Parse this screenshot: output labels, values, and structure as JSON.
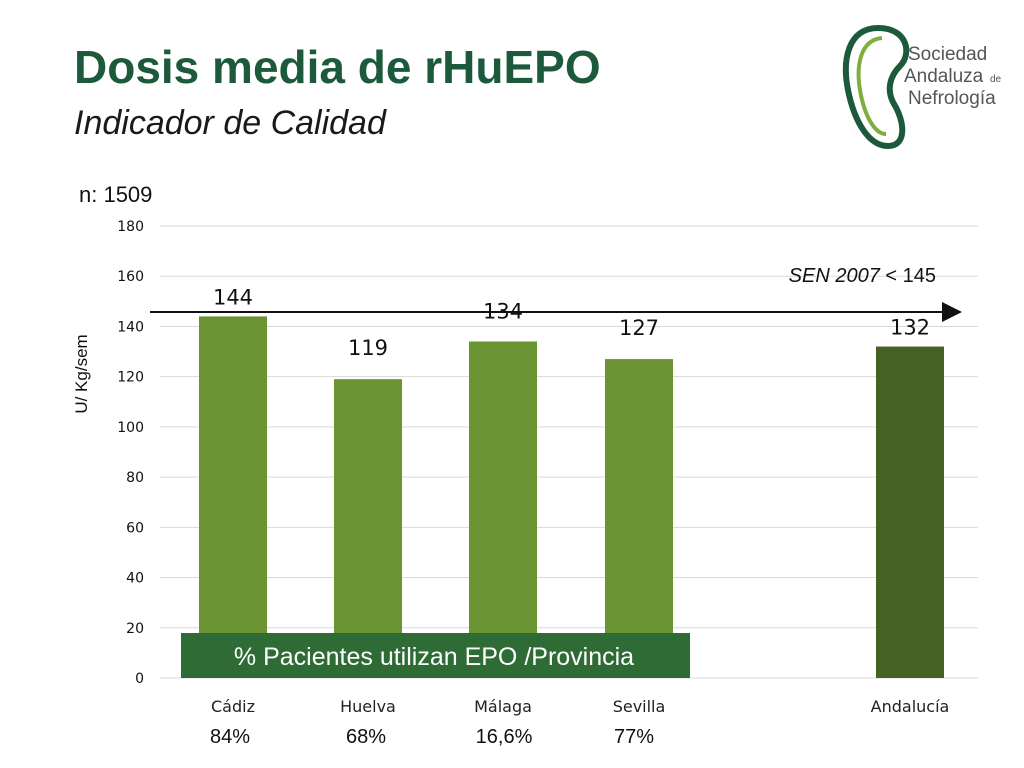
{
  "header": {
    "title": "Dosis media de rHuEPO",
    "subtitle": "Indicador de Calidad"
  },
  "logo": {
    "line1": "Sociedad",
    "line2": "Andaluza",
    "line2_small": "de",
    "line3": "Nefrología"
  },
  "n_label": "n:  1509",
  "reference": {
    "label_italic": "SEN 2007",
    "label_rest": " < 145"
  },
  "banner": "% Pacientes utilizan EPO /Provincia",
  "percentages": [
    "84%",
    "68%",
    "16,6%",
    "77%"
  ],
  "colors": {
    "title": "#1d5a3c",
    "bar": "#6a9331",
    "bar_total": "#466223",
    "banner": "#2e6b35",
    "grid": "#d9d9d9"
  },
  "chart_data": {
    "type": "bar",
    "categories": [
      "Cádiz",
      "Huelva",
      "Málaga",
      "Sevilla",
      "Andalucía"
    ],
    "values": [
      144,
      119,
      134,
      127,
      132
    ],
    "data_labels": [
      "144",
      "119",
      "134",
      "127",
      "132"
    ],
    "ylabel": "U/ Kg/sem",
    "ylim": [
      0,
      180
    ],
    "yticks": [
      "0",
      "20",
      "40",
      "60",
      "80",
      "100",
      "120",
      "140",
      "160",
      "180"
    ],
    "reference_line": 145,
    "grid": true
  }
}
